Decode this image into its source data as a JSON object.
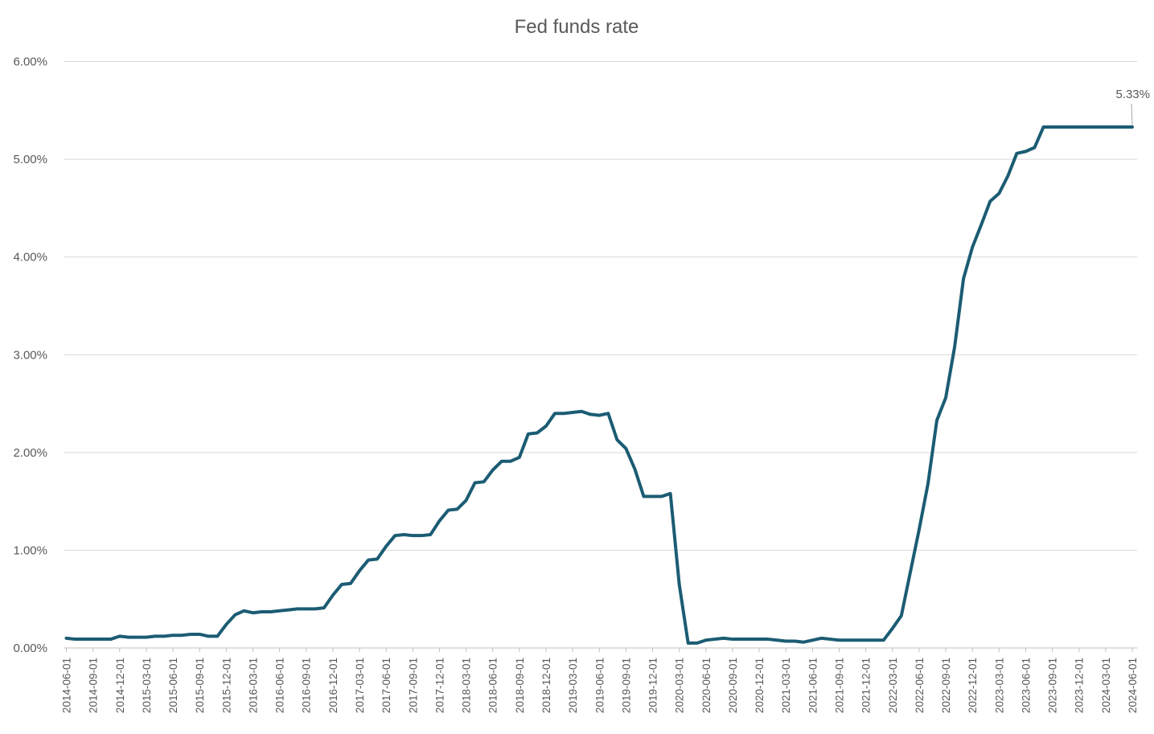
{
  "chart_data": {
    "type": "line",
    "title": "Fed funds rate",
    "xlabel": "",
    "ylabel": "",
    "ylim": [
      0,
      6
    ],
    "y_ticks": [
      "0.00%",
      "1.00%",
      "2.00%",
      "3.00%",
      "4.00%",
      "5.00%",
      "6.00%"
    ],
    "grid": true,
    "legend": "none",
    "line_color": "#1b5c73",
    "x_tick_labels": [
      "2014-06-01",
      "2014-09-01",
      "2014-12-01",
      "2015-03-01",
      "2015-06-01",
      "2015-09-01",
      "2015-12-01",
      "2016-03-01",
      "2016-06-01",
      "2016-09-01",
      "2016-12-01",
      "2017-03-01",
      "2017-06-01",
      "2017-09-01",
      "2017-12-01",
      "2018-03-01",
      "2018-06-01",
      "2018-09-01",
      "2018-12-01",
      "2019-03-01",
      "2019-06-01",
      "2019-09-01",
      "2019-12-01",
      "2020-03-01",
      "2020-06-01",
      "2020-09-01",
      "2020-12-01",
      "2021-03-01",
      "2021-06-01",
      "2021-09-01",
      "2021-12-01",
      "2022-03-01",
      "2022-06-01",
      "2022-09-01",
      "2022-12-01",
      "2023-03-01",
      "2023-06-01",
      "2023-09-01",
      "2023-12-01",
      "2024-03-01",
      "2024-06-01"
    ],
    "series": [
      {
        "x": [
          "2014-06",
          "2014-07",
          "2014-08",
          "2014-09",
          "2014-10",
          "2014-11",
          "2014-12",
          "2015-01",
          "2015-02",
          "2015-03",
          "2015-04",
          "2015-05",
          "2015-06",
          "2015-07",
          "2015-08",
          "2015-09",
          "2015-10",
          "2015-11",
          "2015-12",
          "2016-01",
          "2016-02",
          "2016-03",
          "2016-04",
          "2016-05",
          "2016-06",
          "2016-07",
          "2016-08",
          "2016-09",
          "2016-10",
          "2016-11",
          "2016-12",
          "2017-01",
          "2017-02",
          "2017-03",
          "2017-04",
          "2017-05",
          "2017-06",
          "2017-07",
          "2017-08",
          "2017-09",
          "2017-10",
          "2017-11",
          "2017-12",
          "2018-01",
          "2018-02",
          "2018-03",
          "2018-04",
          "2018-05",
          "2018-06",
          "2018-07",
          "2018-08",
          "2018-09",
          "2018-10",
          "2018-11",
          "2018-12",
          "2019-01",
          "2019-02",
          "2019-03",
          "2019-04",
          "2019-05",
          "2019-06",
          "2019-07",
          "2019-08",
          "2019-09",
          "2019-10",
          "2019-11",
          "2019-12",
          "2020-01",
          "2020-02",
          "2020-03",
          "2020-04",
          "2020-05",
          "2020-06",
          "2020-07",
          "2020-08",
          "2020-09",
          "2020-10",
          "2020-11",
          "2020-12",
          "2021-01",
          "2021-02",
          "2021-03",
          "2021-04",
          "2021-05",
          "2021-06",
          "2021-07",
          "2021-08",
          "2021-09",
          "2021-10",
          "2021-11",
          "2021-12",
          "2022-01",
          "2022-02",
          "2022-03",
          "2022-04",
          "2022-05",
          "2022-06",
          "2022-07",
          "2022-08",
          "2022-09",
          "2022-10",
          "2022-11",
          "2022-12",
          "2023-01",
          "2023-02",
          "2023-03",
          "2023-04",
          "2023-05",
          "2023-06",
          "2023-07",
          "2023-08",
          "2023-09",
          "2023-10",
          "2023-11",
          "2023-12",
          "2024-01",
          "2024-02",
          "2024-03",
          "2024-04",
          "2024-05",
          "2024-06"
        ],
        "values": [
          0.1,
          0.09,
          0.09,
          0.09,
          0.09,
          0.09,
          0.12,
          0.11,
          0.11,
          0.11,
          0.12,
          0.12,
          0.13,
          0.13,
          0.14,
          0.14,
          0.12,
          0.12,
          0.24,
          0.34,
          0.38,
          0.36,
          0.37,
          0.37,
          0.38,
          0.39,
          0.4,
          0.4,
          0.4,
          0.41,
          0.54,
          0.65,
          0.66,
          0.79,
          0.9,
          0.91,
          1.04,
          1.15,
          1.16,
          1.15,
          1.15,
          1.16,
          1.3,
          1.41,
          1.42,
          1.51,
          1.69,
          1.7,
          1.82,
          1.91,
          1.91,
          1.95,
          2.19,
          2.2,
          2.27,
          2.4,
          2.4,
          2.41,
          2.42,
          2.39,
          2.38,
          2.4,
          2.13,
          2.04,
          1.83,
          1.55,
          1.55,
          1.55,
          1.58,
          0.65,
          0.05,
          0.05,
          0.08,
          0.09,
          0.1,
          0.09,
          0.09,
          0.09,
          0.09,
          0.09,
          0.08,
          0.07,
          0.07,
          0.06,
          0.08,
          0.1,
          0.09,
          0.08,
          0.08,
          0.08,
          0.08,
          0.08,
          0.08,
          0.2,
          0.33,
          0.77,
          1.21,
          1.68,
          2.33,
          2.56,
          3.08,
          3.78,
          4.1,
          4.33,
          4.57,
          4.65,
          4.83,
          5.06,
          5.08,
          5.12,
          5.33,
          5.33,
          5.33,
          5.33,
          5.33,
          5.33,
          5.33,
          5.33,
          5.33,
          5.33,
          5.33
        ]
      }
    ],
    "annotations": [
      {
        "x": "2024-06",
        "value": 5.33,
        "text": "5.33%"
      }
    ]
  }
}
